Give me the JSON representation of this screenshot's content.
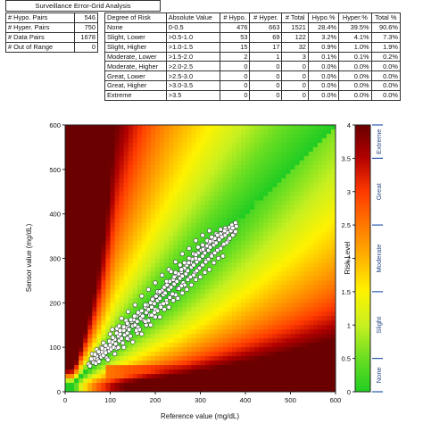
{
  "header": {
    "title": "Surveillance Error-Grid Analysis"
  },
  "summary": [
    {
      "label": "# Hypo. Pairs",
      "value": "546"
    },
    {
      "label": "# Hyper. Pairs",
      "value": "750"
    },
    {
      "label": "# Data Pairs",
      "value": "1678"
    },
    {
      "label": "# Out of Range",
      "value": "0"
    }
  ],
  "risk_table": {
    "headers": [
      "Degree of Risk",
      "Absolute Value",
      "# Hypo.",
      "# Hyper.",
      "# Total",
      "Hypo.%",
      "Hyper.%",
      "Total %"
    ],
    "rows": [
      [
        "None",
        "0-0.5",
        "476",
        "663",
        "1521",
        "28.4%",
        "39.5%",
        "90.6%"
      ],
      [
        "Slight, Lower",
        ">0.5-1.0",
        "53",
        "69",
        "122",
        "3.2%",
        "4.1%",
        "7.3%"
      ],
      [
        "Slight, Higher",
        ">1.0-1.5",
        "15",
        "17",
        "32",
        "0.9%",
        "1.0%",
        "1.9%"
      ],
      [
        "Moderate, Lower",
        ">1.5-2.0",
        "2",
        "1",
        "3",
        "0.1%",
        "0.1%",
        "0.2%"
      ],
      [
        "Moderate, Higher",
        ">2.0-2.5",
        "0",
        "0",
        "0",
        "0.0%",
        "0.0%",
        "0.0%"
      ],
      [
        "Great, Lower",
        ">2.5-3.0",
        "0",
        "0",
        "0",
        "0.0%",
        "0.0%",
        "0.0%"
      ],
      [
        "Great, Higher",
        ">3.0-3.5",
        "0",
        "0",
        "0",
        "0.0%",
        "0.0%",
        "0.0%"
      ],
      [
        "Extreme",
        ">3.5",
        "0",
        "0",
        "0",
        "0.0%",
        "0.0%",
        "0.0%"
      ]
    ]
  },
  "chart_data": {
    "type": "scatter",
    "xlabel": "Reference value (mg/dL)",
    "ylabel": "Sensor value (mg/dL)",
    "xlim": [
      0,
      600
    ],
    "ylim": [
      0,
      600
    ],
    "xticks": [
      "0",
      "100",
      "200",
      "300",
      "400",
      "500",
      "600"
    ],
    "yticks": [
      "0",
      "100",
      "200",
      "300",
      "400",
      "500",
      "600"
    ],
    "background": "heatmap",
    "colorbar": {
      "label": "Risk Level",
      "range": [
        0,
        4
      ],
      "ticks": [
        "0",
        "0.5",
        "1",
        "1.5",
        "2",
        "2.5",
        "3",
        "3.5",
        "4"
      ],
      "zones": [
        "None",
        "Slight",
        "Moderate",
        "Great",
        "Extreme"
      ],
      "colors": [
        "#22cc22",
        "#c8f020",
        "#fff200",
        "#ffb400",
        "#ff3a00",
        "#b00000",
        "#6a0000"
      ]
    },
    "points": [
      [
        52,
        62
      ],
      [
        55,
        58
      ],
      [
        60,
        70
      ],
      [
        63,
        66
      ],
      [
        65,
        75
      ],
      [
        68,
        64
      ],
      [
        70,
        80
      ],
      [
        72,
        72
      ],
      [
        75,
        68
      ],
      [
        78,
        85
      ],
      [
        80,
        78
      ],
      [
        82,
        90
      ],
      [
        85,
        82
      ],
      [
        88,
        95
      ],
      [
        90,
        88
      ],
      [
        92,
        76
      ],
      [
        95,
        100
      ],
      [
        98,
        92
      ],
      [
        100,
        105
      ],
      [
        102,
        96
      ],
      [
        105,
        112
      ],
      [
        108,
        100
      ],
      [
        110,
        118
      ],
      [
        112,
        108
      ],
      [
        115,
        98
      ],
      [
        118,
        125
      ],
      [
        120,
        115
      ],
      [
        122,
        130
      ],
      [
        125,
        120
      ],
      [
        128,
        110
      ],
      [
        130,
        138
      ],
      [
        132,
        128
      ],
      [
        135,
        145
      ],
      [
        138,
        132
      ],
      [
        140,
        150
      ],
      [
        142,
        140
      ],
      [
        145,
        125
      ],
      [
        148,
        158
      ],
      [
        150,
        148
      ],
      [
        152,
        162
      ],
      [
        155,
        150
      ],
      [
        158,
        170
      ],
      [
        160,
        158
      ],
      [
        162,
        145
      ],
      [
        165,
        175
      ],
      [
        168,
        165
      ],
      [
        170,
        182
      ],
      [
        172,
        170
      ],
      [
        175,
        160
      ],
      [
        178,
        190
      ],
      [
        180,
        178
      ],
      [
        182,
        195
      ],
      [
        185,
        185
      ],
      [
        188,
        172
      ],
      [
        190,
        200
      ],
      [
        192,
        190
      ],
      [
        195,
        210
      ],
      [
        198,
        198
      ],
      [
        200,
        185
      ],
      [
        202,
        215
      ],
      [
        205,
        205
      ],
      [
        208,
        222
      ],
      [
        210,
        210
      ],
      [
        212,
        195
      ],
      [
        215,
        228
      ],
      [
        218,
        218
      ],
      [
        220,
        235
      ],
      [
        222,
        222
      ],
      [
        225,
        205
      ],
      [
        228,
        240
      ],
      [
        230,
        230
      ],
      [
        232,
        248
      ],
      [
        235,
        235
      ],
      [
        238,
        218
      ],
      [
        240,
        252
      ],
      [
        242,
        242
      ],
      [
        245,
        260
      ],
      [
        248,
        248
      ],
      [
        250,
        232
      ],
      [
        252,
        265
      ],
      [
        255,
        255
      ],
      [
        258,
        270
      ],
      [
        260,
        260
      ],
      [
        262,
        245
      ],
      [
        265,
        278
      ],
      [
        268,
        265
      ],
      [
        270,
        285
      ],
      [
        272,
        272
      ],
      [
        275,
        255
      ],
      [
        278,
        290
      ],
      [
        280,
        280
      ],
      [
        282,
        298
      ],
      [
        285,
        285
      ],
      [
        288,
        268
      ],
      [
        290,
        300
      ],
      [
        292,
        292
      ],
      [
        295,
        312
      ],
      [
        298,
        298
      ],
      [
        300,
        280
      ],
      [
        302,
        318
      ],
      [
        305,
        305
      ],
      [
        308,
        322
      ],
      [
        310,
        312
      ],
      [
        312,
        295
      ],
      [
        315,
        328
      ],
      [
        318,
        318
      ],
      [
        320,
        335
      ],
      [
        322,
        325
      ],
      [
        325,
        308
      ],
      [
        328,
        340
      ],
      [
        330,
        330
      ],
      [
        332,
        345
      ],
      [
        335,
        335
      ],
      [
        338,
        318
      ],
      [
        340,
        350
      ],
      [
        342,
        342
      ],
      [
        345,
        355
      ],
      [
        348,
        348
      ],
      [
        350,
        330
      ],
      [
        352,
        360
      ],
      [
        355,
        352
      ],
      [
        358,
        365
      ],
      [
        360,
        358
      ],
      [
        362,
        340
      ],
      [
        365,
        370
      ],
      [
        368,
        362
      ],
      [
        370,
        375
      ],
      [
        372,
        368
      ],
      [
        375,
        355
      ],
      [
        378,
        380
      ],
      [
        380,
        372
      ],
      [
        125,
        165
      ],
      [
        140,
        180
      ],
      [
        155,
        195
      ],
      [
        170,
        215
      ],
      [
        185,
        230
      ],
      [
        200,
        245
      ],
      [
        215,
        262
      ],
      [
        230,
        275
      ],
      [
        245,
        292
      ],
      [
        260,
        310
      ],
      [
        275,
        322
      ],
      [
        290,
        340
      ],
      [
        305,
        352
      ],
      [
        320,
        362
      ],
      [
        140,
        118
      ],
      [
        160,
        132
      ],
      [
        180,
        150
      ],
      [
        200,
        168
      ],
      [
        220,
        185
      ],
      [
        240,
        205
      ],
      [
        260,
        222
      ],
      [
        280,
        240
      ],
      [
        300,
        258
      ],
      [
        320,
        275
      ],
      [
        340,
        300
      ],
      [
        85,
        110
      ],
      [
        100,
        130
      ],
      [
        115,
        142
      ],
      [
        95,
        72
      ],
      [
        110,
        85
      ],
      [
        130,
        100
      ],
      [
        150,
        112
      ],
      [
        170,
        130
      ],
      [
        190,
        150
      ],
      [
        210,
        168
      ],
      [
        230,
        190
      ],
      [
        250,
        210
      ],
      [
        270,
        230
      ],
      [
        290,
        252
      ],
      [
        310,
        268
      ],
      [
        330,
        290
      ],
      [
        350,
        305
      ],
      [
        60,
        85
      ],
      [
        70,
        95
      ],
      [
        80,
        100
      ],
      [
        105,
        140
      ],
      [
        120,
        148
      ],
      [
        135,
        160
      ],
      [
        165,
        140
      ],
      [
        185,
        160
      ],
      [
        205,
        182
      ],
      [
        225,
        200
      ],
      [
        245,
        218
      ],
      [
        265,
        240
      ],
      [
        285,
        262
      ],
      [
        305,
        285
      ],
      [
        325,
        305
      ],
      [
        345,
        322
      ],
      [
        365,
        345
      ],
      [
        235,
        270
      ],
      [
        255,
        285
      ],
      [
        275,
        300
      ],
      [
        295,
        325
      ],
      [
        315,
        340
      ],
      [
        335,
        355
      ],
      [
        355,
        368
      ],
      [
        118,
        100
      ],
      [
        138,
        120
      ],
      [
        158,
        138
      ],
      [
        178,
        158
      ],
      [
        198,
        178
      ],
      [
        218,
        198
      ],
      [
        238,
        220
      ],
      [
        258,
        238
      ],
      [
        278,
        258
      ],
      [
        298,
        278
      ],
      [
        318,
        298
      ],
      [
        338,
        318
      ],
      [
        358,
        335
      ],
      [
        378,
        360
      ],
      [
        205,
        225
      ],
      [
        225,
        248
      ],
      [
        245,
        268
      ],
      [
        265,
        290
      ],
      [
        285,
        310
      ],
      [
        305,
        330
      ],
      [
        325,
        348
      ],
      [
        345,
        365
      ],
      [
        192,
        172
      ],
      [
        212,
        190
      ],
      [
        232,
        212
      ],
      [
        252,
        232
      ],
      [
        272,
        252
      ],
      [
        292,
        272
      ],
      [
        312,
        292
      ],
      [
        332,
        312
      ],
      [
        352,
        332
      ],
      [
        372,
        352
      ],
      [
        58,
        74
      ],
      [
        66,
        84
      ],
      [
        74,
        90
      ],
      [
        82,
        98
      ],
      [
        90,
        104
      ],
      [
        98,
        114
      ],
      [
        106,
        122
      ],
      [
        114,
        132
      ],
      [
        122,
        138
      ],
      [
        130,
        146
      ],
      [
        138,
        154
      ],
      [
        146,
        162
      ],
      [
        154,
        170
      ],
      [
        162,
        178
      ],
      [
        178,
        195
      ],
      [
        194,
        208
      ],
      [
        210,
        225
      ],
      [
        226,
        240
      ],
      [
        242,
        258
      ],
      [
        258,
        275
      ],
      [
        274,
        290
      ],
      [
        290,
        308
      ],
      [
        306,
        320
      ],
      [
        322,
        338
      ],
      [
        338,
        352
      ],
      [
        354,
        362
      ]
    ]
  }
}
